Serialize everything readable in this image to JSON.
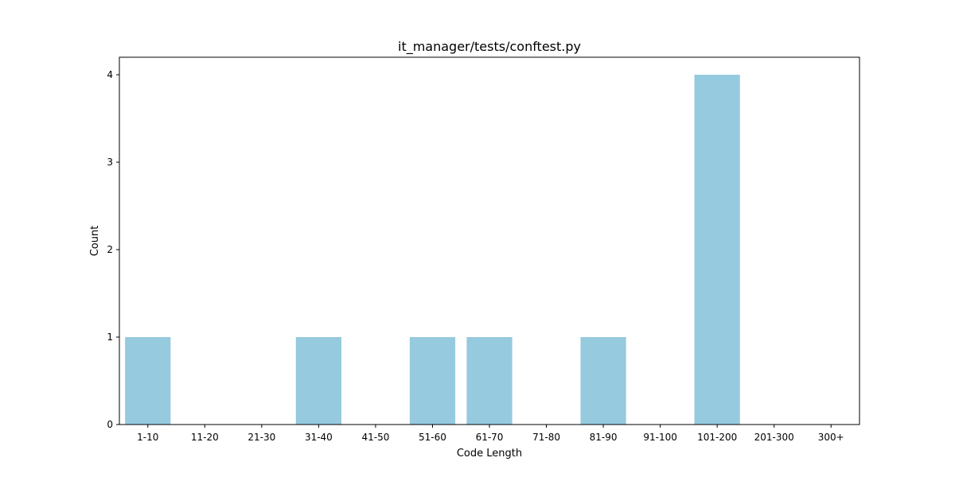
{
  "chart_data": {
    "type": "bar",
    "title": "it_manager/tests/conftest.py",
    "xlabel": "Code Length",
    "ylabel": "Count",
    "categories": [
      "1-10",
      "11-20",
      "21-30",
      "31-40",
      "41-50",
      "51-60",
      "61-70",
      "71-80",
      "81-90",
      "91-100",
      "101-200",
      "201-300",
      "300+"
    ],
    "values": [
      1,
      0,
      0,
      1,
      0,
      1,
      1,
      0,
      1,
      0,
      4,
      0,
      0
    ],
    "yticks": [
      0,
      1,
      2,
      3,
      4
    ],
    "ylim": [
      0,
      4.2
    ],
    "grid": false,
    "bar_color": "#96cade"
  }
}
